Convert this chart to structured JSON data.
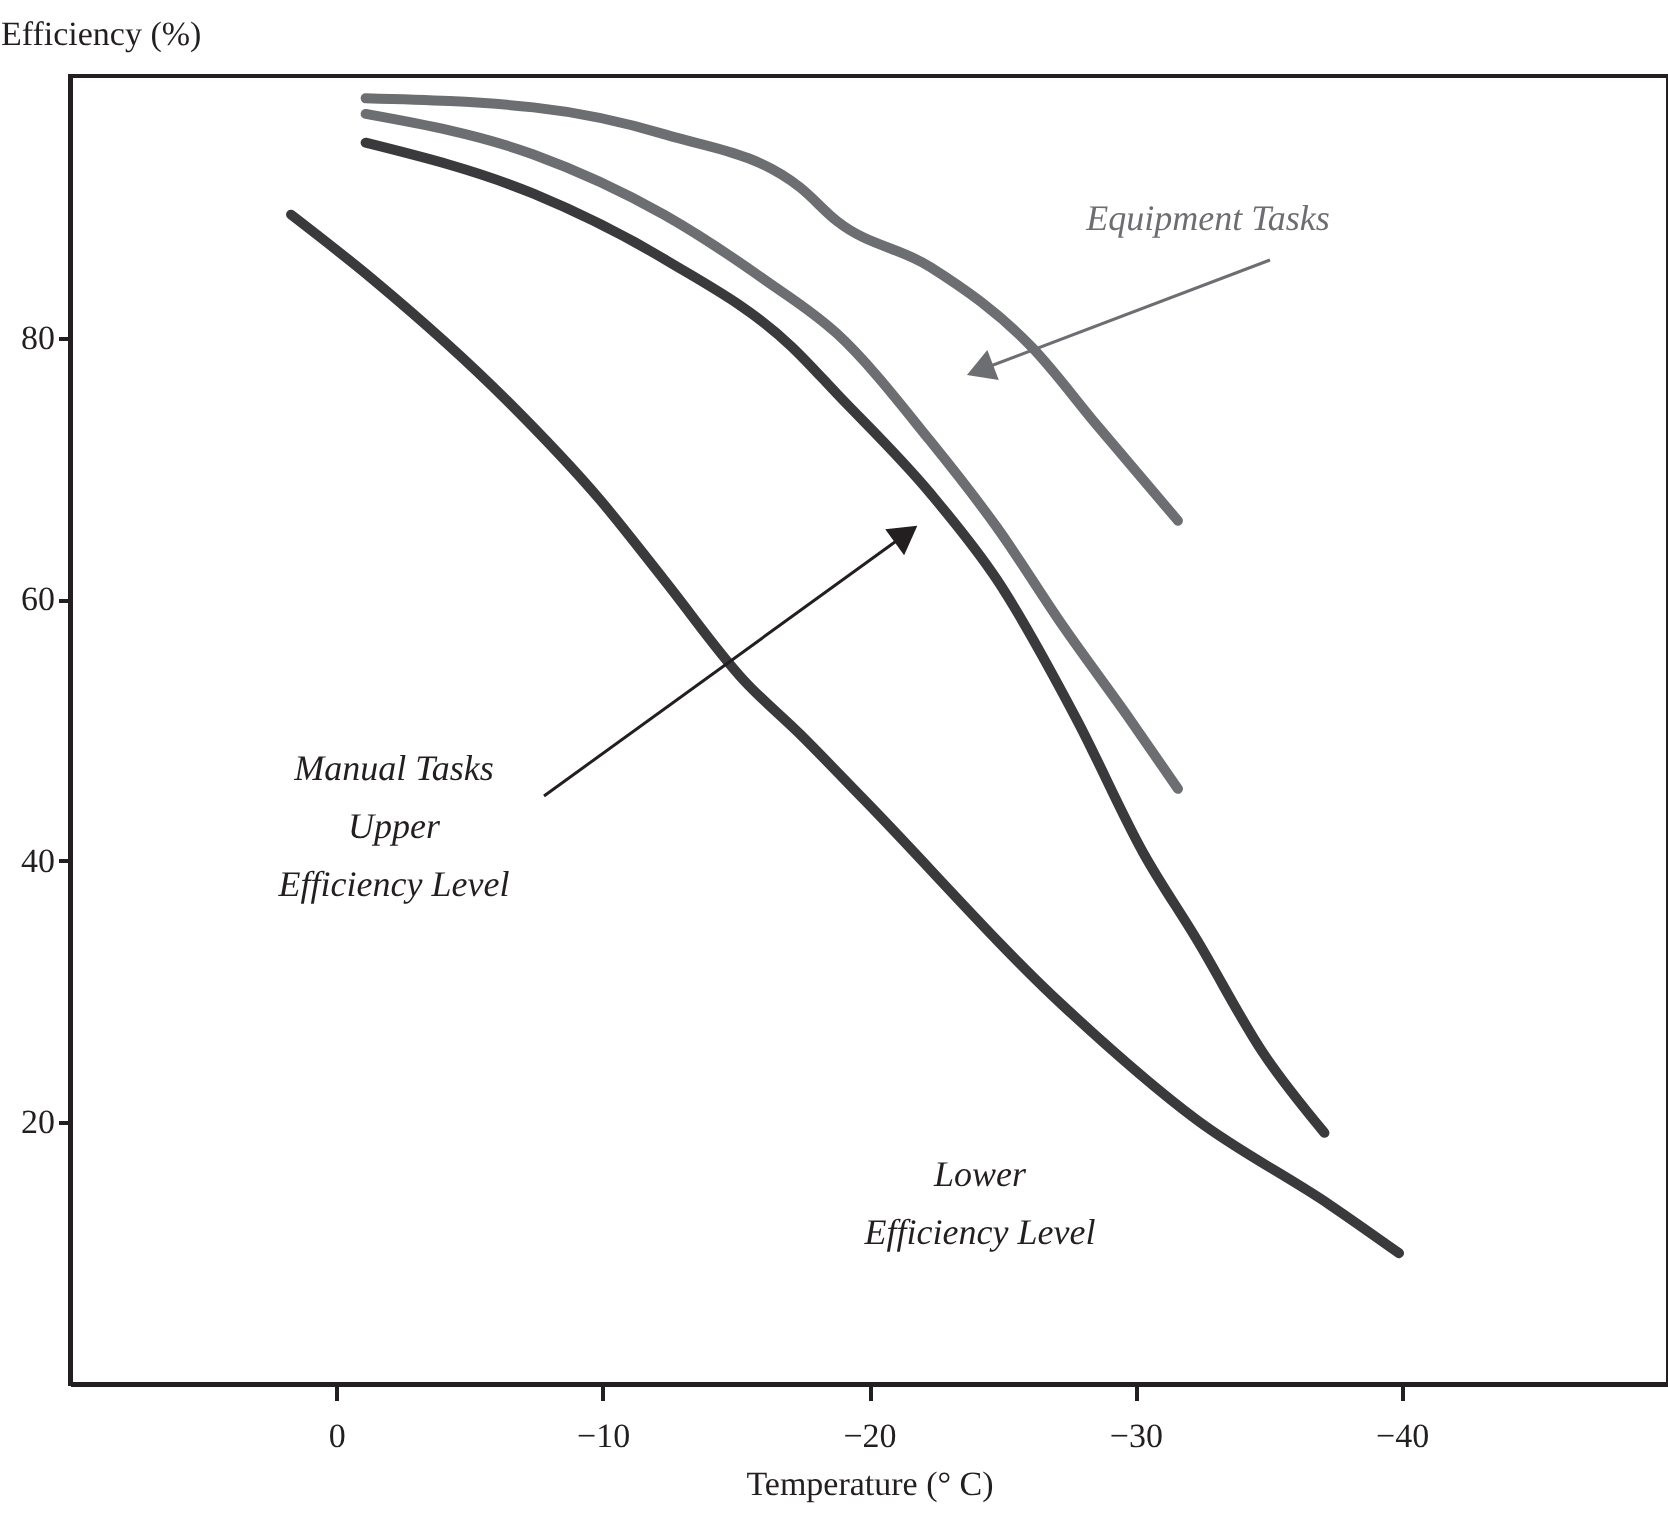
{
  "chart_data": {
    "type": "line",
    "xlabel": "Temperature (° C)",
    "ylabel": "Efficiency (%)",
    "xlim": [
      10,
      -50
    ],
    "ylim": [
      0,
      100
    ],
    "xticks": [
      0,
      {
        "value": -10,
        "label": "−10"
      },
      {
        "value": -20,
        "label": "−20"
      },
      {
        "value": -30,
        "label": "−30"
      },
      {
        "value": -40,
        "label": "−40"
      }
    ],
    "yticks": [
      20,
      40,
      60,
      80
    ],
    "grid": false,
    "marker": "none",
    "line_style": "solid",
    "series": [
      {
        "color": "#6d6e71",
        "x": [
          -1.1,
          -7.4,
          -12.4,
          -17.4,
          -18.8,
          -22.3,
          -26.1,
          -28.6,
          -31.6
        ],
        "values": [
          98.3,
          97.6,
          95.5,
          91.5,
          88.9,
          85.4,
          79.3,
          73.2,
          66.0
        ]
      },
      {
        "color": "#6d6e71",
        "x": [
          -1.1,
          -7.4,
          -12.3,
          -16.1,
          -18.8,
          -22.3,
          -24.8,
          -27.3,
          -29.8,
          -31.6
        ],
        "values": [
          97.1,
          94.0,
          89.4,
          84.4,
          80.3,
          72.1,
          65.5,
          57.9,
          50.8,
          45.5
        ]
      },
      {
        "color": "#3a3a3c",
        "x": [
          -1.1,
          -7.4,
          -12.4,
          -17.1,
          -18.8,
          -22.3,
          -24.8,
          -27.8,
          -30.3,
          -32.3,
          -34.8,
          -37.1
        ],
        "values": [
          94.9,
          91.0,
          85.9,
          79.3,
          75.7,
          68.1,
          61.5,
          50.8,
          40.6,
          34.0,
          25.3,
          19.2
        ]
      },
      {
        "color": "#3a3a3c",
        "x": [
          1.7,
          -1.4,
          -6.4,
          -9.9,
          -12.3,
          -15.3,
          -17.4,
          -19.8,
          -27.3,
          -32.3,
          -37.3,
          -39.9
        ],
        "values": [
          89.4,
          84.4,
          75.2,
          67.6,
          61.5,
          53.8,
          49.7,
          44.7,
          28.9,
          20.2,
          13.7,
          10.0
        ]
      }
    ],
    "annotations": [
      "Equipment Tasks",
      "Manual Tasks\nUpper\nEfficiency Level",
      "Lower\nEfficiency Level"
    ]
  }
}
